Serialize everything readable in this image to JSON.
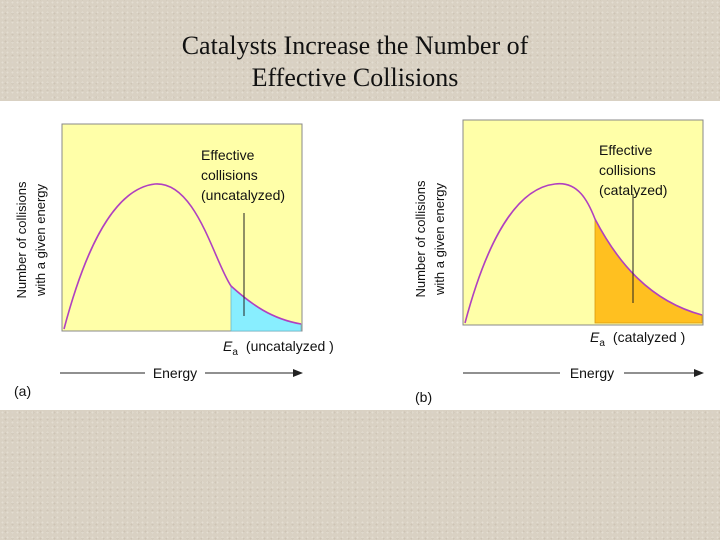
{
  "slide": {
    "title_line1": "Catalysts Increase the Number of",
    "title_line2": "Effective Collisions"
  },
  "colors": {
    "plot_background": "#ffffa8",
    "curve": "#b040c0",
    "uncatalyzed_fill": "#88eeff",
    "catalyzed_fill": "#ffc020",
    "axis_arrow": "#222222"
  },
  "panels": [
    {
      "id": "a",
      "panel_label": "(a)",
      "y_axis_label_line1": "Number of collisions",
      "y_axis_label_line2": "with a given energy",
      "x_axis_label": "Energy",
      "annotation_line1": "Effective",
      "annotation_line2": "collisions",
      "annotation_line3": "(uncatalyzed)",
      "ea_symbol": "E",
      "ea_subscript": "a",
      "ea_label": "(uncatalyzed )",
      "shaded_region": "high-energy tail beyond Ea (uncatalyzed)",
      "fill_color_key": "uncatalyzed_fill"
    },
    {
      "id": "b",
      "panel_label": "(b)",
      "y_axis_label_line1": "Number of collisions",
      "y_axis_label_line2": "with a given energy",
      "x_axis_label": "Energy",
      "annotation_line1": "Effective",
      "annotation_line2": "collisions",
      "annotation_line3": "(catalyzed)",
      "ea_symbol": "E",
      "ea_subscript": "a",
      "ea_label": "(catalyzed )",
      "shaded_region": "high-energy tail beyond Ea (catalyzed), larger area",
      "fill_color_key": "catalyzed_fill"
    }
  ]
}
